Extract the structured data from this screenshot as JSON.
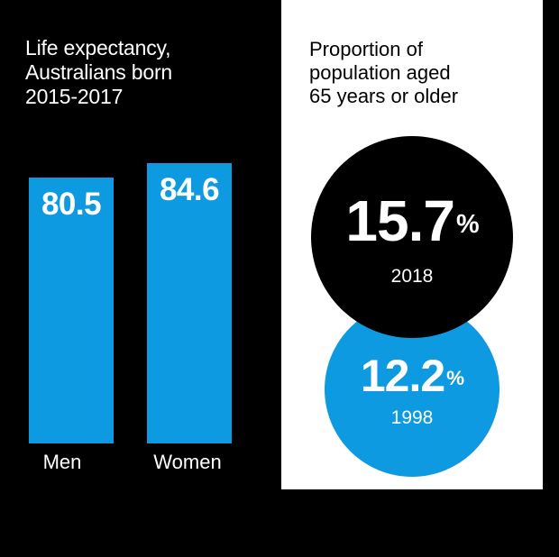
{
  "left_title": "Life expectancy,\nAustralians born\n2015-2017",
  "right_title": "Proportion of\npopulation aged\n65 years or older",
  "colors": {
    "bar": "#0d9ae0",
    "bubble_2018": "#000000",
    "bubble_1998": "#0d9ae0"
  },
  "chart_data": [
    {
      "type": "bar",
      "title": "Life expectancy, Australians born 2015-2017",
      "categories": [
        "Men",
        "Women"
      ],
      "values": [
        80.5,
        84.6
      ],
      "value_labels": [
        "80.5",
        "84.6"
      ]
    },
    {
      "type": "bubble",
      "title": "Proportion of population aged 65 years or older",
      "unit": "%",
      "points": [
        {
          "year": "2018",
          "value": 15.7,
          "label": "15.7"
        },
        {
          "year": "1998",
          "value": 12.2,
          "label": "12.2"
        }
      ]
    }
  ]
}
